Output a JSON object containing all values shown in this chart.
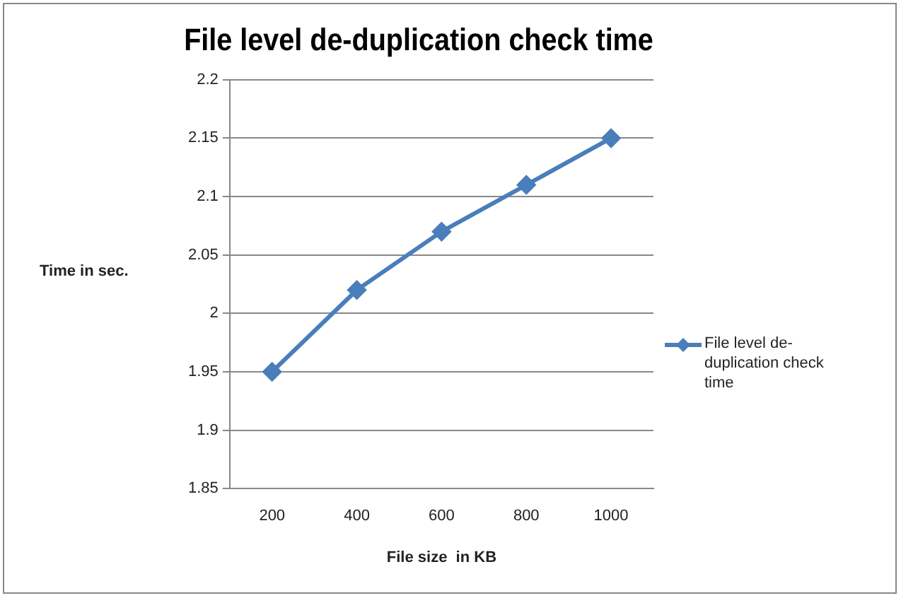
{
  "chart_data": {
    "type": "line",
    "title": "File level de-duplication check time",
    "xlabel": "File size  in KB",
    "ylabel": "Time in sec.",
    "categories": [
      "200",
      "400",
      "600",
      "800",
      "1000"
    ],
    "series": [
      {
        "name": "File level de-duplication check time",
        "color": "#4a7ebb",
        "values": [
          1.95,
          2.02,
          2.07,
          2.11,
          2.15
        ]
      }
    ],
    "ylim": [
      1.85,
      2.2
    ],
    "yticks": [
      1.85,
      1.9,
      1.95,
      2,
      2.05,
      2.1,
      2.15,
      2.2
    ],
    "grid": "y",
    "legend": "right",
    "marker": "diamond"
  }
}
